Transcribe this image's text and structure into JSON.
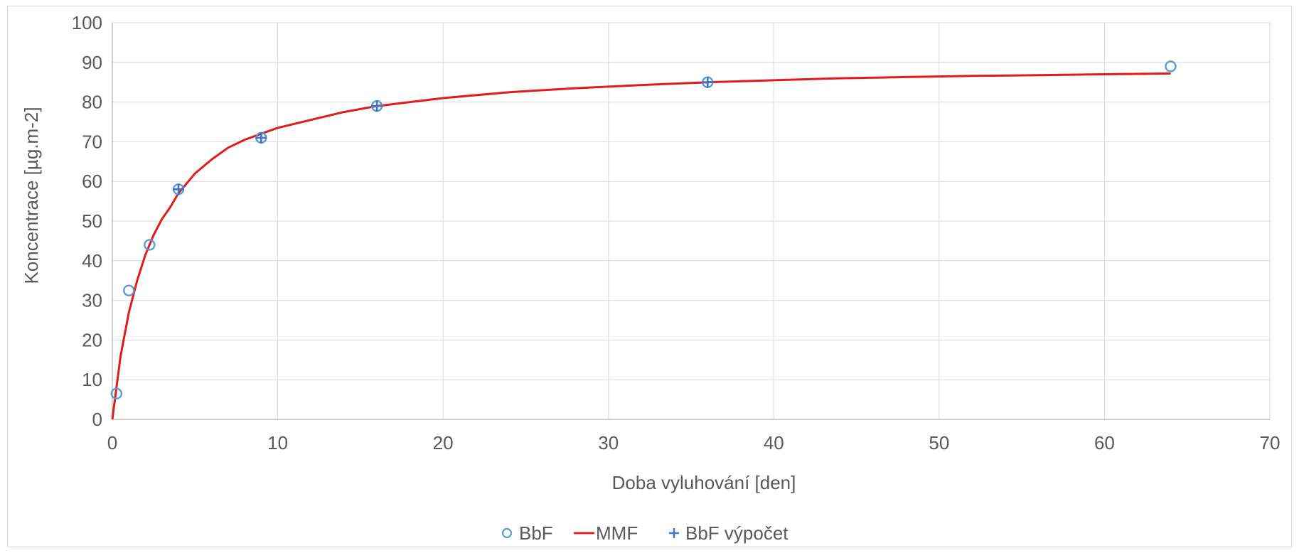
{
  "chart_data": {
    "type": "scatter",
    "title": "",
    "xlabel": "Doba vyluhování [den]",
    "ylabel": "Koncentrace [µg.m-2]",
    "xlim": [
      0,
      70
    ],
    "ylim": [
      0,
      100
    ],
    "xticks": [
      0,
      10,
      20,
      30,
      40,
      50,
      60,
      70
    ],
    "yticks": [
      0,
      10,
      20,
      30,
      40,
      50,
      60,
      70,
      80,
      90,
      100
    ],
    "grid": true,
    "legend_position": "bottom",
    "series": [
      {
        "name": "BbF",
        "kind": "scatter",
        "marker": "circle",
        "color": "#5b9bd5",
        "x": [
          0.25,
          1,
          2.25,
          4,
          9,
          16,
          36,
          64
        ],
        "y": [
          6.5,
          32.5,
          44,
          58,
          71,
          79,
          85,
          89
        ]
      },
      {
        "name": "MMF",
        "kind": "line",
        "color": "#e31a1c",
        "x": [
          0,
          0.5,
          1,
          1.5,
          2,
          2.5,
          3,
          3.5,
          4,
          5,
          6,
          7,
          8,
          9,
          10,
          12,
          14,
          16,
          18,
          20,
          24,
          28,
          32,
          36,
          40,
          44,
          48,
          52,
          56,
          60,
          64
        ],
        "y": [
          0,
          16,
          27,
          35,
          41.5,
          46.5,
          50.5,
          53.5,
          57,
          62,
          65.5,
          68.5,
          70.5,
          72,
          73.5,
          75.5,
          77.5,
          79,
          80,
          81,
          82.5,
          83.5,
          84.3,
          85,
          85.5,
          86,
          86.3,
          86.6,
          86.8,
          87,
          87.2
        ]
      },
      {
        "name": "BbF výpočet",
        "kind": "scatter",
        "marker": "plus",
        "color": "#4472c4",
        "x": [
          4,
          9,
          16,
          36
        ],
        "y": [
          58,
          71,
          79,
          85
        ]
      }
    ]
  },
  "colors": {
    "axis": "#bfbfbf",
    "grid": "#d9d9d9",
    "text": "#595959"
  }
}
